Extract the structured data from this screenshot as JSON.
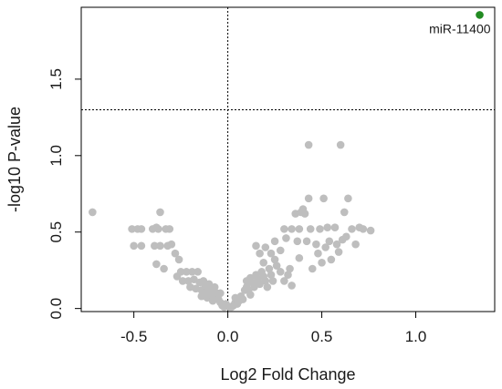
{
  "chart_data": {
    "type": "scatter",
    "title": "",
    "xlabel": "Log2 Fold Change",
    "ylabel": "-log10 P-value",
    "xlim": [
      -0.78,
      1.42
    ],
    "ylim": [
      -0.02,
      1.97
    ],
    "x_ticks": [
      -0.5,
      0.0,
      0.5,
      1.0
    ],
    "x_tick_labels": [
      "-0.5",
      "0.0",
      "0.5",
      "1.0"
    ],
    "y_ticks": [
      0.0,
      0.5,
      1.0,
      1.5
    ],
    "y_tick_labels": [
      "0.0",
      "0.5",
      "1.0",
      "1.5"
    ],
    "grid": false,
    "reference_lines": [
      {
        "orientation": "vertical",
        "value": 0.0,
        "style": "dotted"
      },
      {
        "orientation": "horizontal",
        "value": 1.3,
        "style": "dotted"
      }
    ],
    "colors": {
      "not_significant": "#bebebe",
      "significant": "#228b22",
      "axes": "#000000"
    },
    "series": [
      {
        "points": [
          [
            -0.72,
            0.63
          ],
          [
            -0.51,
            0.52
          ],
          [
            -0.48,
            0.52
          ],
          [
            -0.46,
            0.52
          ],
          [
            -0.5,
            0.41
          ],
          [
            -0.46,
            0.41
          ],
          [
            -0.4,
            0.52
          ],
          [
            -0.38,
            0.53
          ],
          [
            -0.36,
            0.63
          ],
          [
            -0.37,
            0.52
          ],
          [
            -0.33,
            0.52
          ],
          [
            -0.31,
            0.52
          ],
          [
            -0.39,
            0.41
          ],
          [
            -0.36,
            0.41
          ],
          [
            -0.32,
            0.41
          ],
          [
            -0.38,
            0.29
          ],
          [
            -0.34,
            0.26
          ],
          [
            -0.3,
            0.42
          ],
          [
            -0.28,
            0.36
          ],
          [
            -0.26,
            0.32
          ],
          [
            -0.27,
            0.21
          ],
          [
            -0.25,
            0.24
          ],
          [
            -0.24,
            0.18
          ],
          [
            -0.22,
            0.24
          ],
          [
            -0.21,
            0.18
          ],
          [
            -0.2,
            0.14
          ],
          [
            -0.19,
            0.24
          ],
          [
            -0.18,
            0.19
          ],
          [
            -0.17,
            0.13
          ],
          [
            -0.16,
            0.24
          ],
          [
            -0.15,
            0.17
          ],
          [
            -0.14,
            0.12
          ],
          [
            -0.14,
            0.08
          ],
          [
            -0.13,
            0.18
          ],
          [
            -0.12,
            0.15
          ],
          [
            -0.11,
            0.11
          ],
          [
            -0.11,
            0.07
          ],
          [
            -0.1,
            0.16
          ],
          [
            -0.09,
            0.12
          ],
          [
            -0.08,
            0.08
          ],
          [
            -0.08,
            0.05
          ],
          [
            -0.07,
            0.14
          ],
          [
            -0.06,
            0.1
          ],
          [
            -0.05,
            0.06
          ],
          [
            -0.04,
            0.04
          ],
          [
            -0.04,
            0.1
          ],
          [
            -0.03,
            0.02
          ],
          [
            -0.02,
            0.01
          ],
          [
            -0.01,
            0.03
          ],
          [
            0.01,
            0.01
          ],
          [
            0.02,
            0.01
          ],
          [
            0.03,
            0.02
          ],
          [
            0.04,
            0.04
          ],
          [
            0.05,
            0.03
          ],
          [
            0.04,
            0.07
          ],
          [
            0.06,
            0.05
          ],
          [
            0.07,
            0.08
          ],
          [
            0.08,
            0.06
          ],
          [
            0.09,
            0.12
          ],
          [
            0.1,
            0.14
          ],
          [
            0.11,
            0.12
          ],
          [
            0.12,
            0.09
          ],
          [
            0.1,
            0.18
          ],
          [
            0.12,
            0.2
          ],
          [
            0.13,
            0.17
          ],
          [
            0.14,
            0.14
          ],
          [
            0.15,
            0.22
          ],
          [
            0.16,
            0.19
          ],
          [
            0.17,
            0.16
          ],
          [
            0.18,
            0.24
          ],
          [
            0.19,
            0.21
          ],
          [
            0.2,
            0.18
          ],
          [
            0.21,
            0.14
          ],
          [
            0.22,
            0.26
          ],
          [
            0.23,
            0.22
          ],
          [
            0.24,
            0.18
          ],
          [
            0.25,
            0.32
          ],
          [
            0.26,
            0.28
          ],
          [
            0.15,
            0.41
          ],
          [
            0.17,
            0.36
          ],
          [
            0.19,
            0.3
          ],
          [
            0.2,
            0.4
          ],
          [
            0.23,
            0.36
          ],
          [
            0.25,
            0.44
          ],
          [
            0.28,
            0.38
          ],
          [
            0.28,
            0.24
          ],
          [
            0.3,
            0.18
          ],
          [
            0.32,
            0.22
          ],
          [
            0.33,
            0.26
          ],
          [
            0.34,
            0.15
          ],
          [
            0.3,
            0.52
          ],
          [
            0.31,
            0.46
          ],
          [
            0.34,
            0.52
          ],
          [
            0.36,
            0.62
          ],
          [
            0.37,
            0.44
          ],
          [
            0.38,
            0.33
          ],
          [
            0.38,
            0.52
          ],
          [
            0.39,
            0.63
          ],
          [
            0.4,
            0.65
          ],
          [
            0.41,
            0.62
          ],
          [
            0.42,
            0.44
          ],
          [
            0.43,
            1.07
          ],
          [
            0.43,
            0.72
          ],
          [
            0.44,
            0.52
          ],
          [
            0.45,
            0.26
          ],
          [
            0.47,
            0.42
          ],
          [
            0.48,
            0.36
          ],
          [
            0.49,
            0.52
          ],
          [
            0.5,
            0.3
          ],
          [
            0.51,
            0.72
          ],
          [
            0.52,
            0.4
          ],
          [
            0.53,
            0.53
          ],
          [
            0.54,
            0.44
          ],
          [
            0.55,
            0.32
          ],
          [
            0.57,
            0.53
          ],
          [
            0.58,
            0.42
          ],
          [
            0.59,
            0.37
          ],
          [
            0.6,
            1.07
          ],
          [
            0.61,
            0.45
          ],
          [
            0.62,
            0.63
          ],
          [
            0.63,
            0.47
          ],
          [
            0.64,
            0.72
          ],
          [
            0.66,
            0.52
          ],
          [
            0.68,
            0.42
          ],
          [
            0.7,
            0.53
          ],
          [
            0.72,
            0.52
          ],
          [
            0.76,
            0.51
          ]
        ]
      },
      {
        "points": [
          [
            1.34,
            1.92
          ]
        ],
        "labels": [
          "miR-11400"
        ]
      }
    ]
  }
}
